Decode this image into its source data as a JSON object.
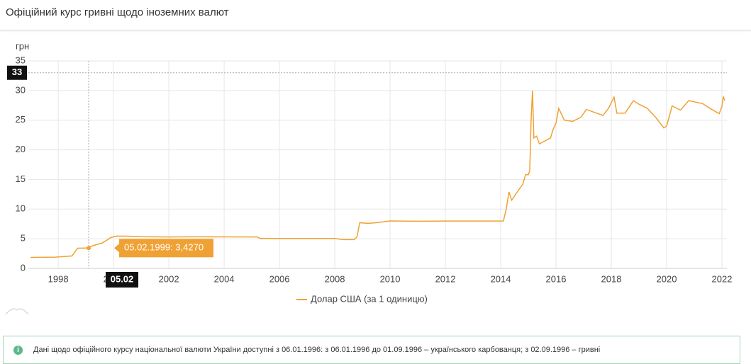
{
  "header": {
    "title": "Офіційний курс гривні щодо іноземних валют"
  },
  "chart_data": {
    "type": "line",
    "y_label": "грн",
    "x": [
      1997.0,
      1997.9,
      1998.5,
      1998.7,
      1999.0,
      1999.3,
      1999.6,
      1999.9,
      2000.1,
      2000.5,
      2001.0,
      2002.0,
      2003.0,
      2004.0,
      2005.2,
      2005.3,
      2006.0,
      2007.0,
      2008.0,
      2008.3,
      2008.7,
      2008.8,
      2008.9,
      2009.2,
      2009.5,
      2010.0,
      2011.0,
      2012.0,
      2013.0,
      2014.0,
      2014.1,
      2014.2,
      2014.3,
      2014.4,
      2014.6,
      2014.8,
      2014.9,
      2015.0,
      2015.05,
      2015.1,
      2015.15,
      2015.2,
      2015.3,
      2015.4,
      2015.6,
      2015.8,
      2015.9,
      2016.0,
      2016.1,
      2016.3,
      2016.6,
      2016.9,
      2017.1,
      2017.4,
      2017.7,
      2017.9,
      2018.1,
      2018.2,
      2018.5,
      2018.8,
      2019.0,
      2019.3,
      2019.6,
      2019.9,
      2020.0,
      2020.2,
      2020.5,
      2020.8,
      2021.0,
      2021.3,
      2021.6,
      2021.9,
      2022.0,
      2022.05,
      2022.1
    ],
    "series": [
      {
        "name": "Долар США (за 1 одиницю)",
        "color": "#f0a133",
        "values": [
          1.85,
          1.9,
          2.1,
          3.4,
          3.43,
          3.9,
          4.3,
          5.2,
          5.45,
          5.43,
          5.35,
          5.3,
          5.33,
          5.32,
          5.3,
          5.05,
          5.05,
          5.05,
          5.05,
          4.85,
          4.85,
          5.3,
          7.7,
          7.6,
          7.7,
          8.0,
          7.95,
          7.99,
          7.99,
          7.99,
          8.0,
          10.0,
          12.9,
          11.5,
          12.9,
          14.2,
          15.8,
          15.8,
          16.5,
          25,
          30,
          22,
          22.3,
          21,
          21.5,
          22,
          23.5,
          24.5,
          27,
          25,
          24.8,
          25.5,
          26.8,
          26.3,
          25.8,
          27,
          28.9,
          26.2,
          26.2,
          28.3,
          27.7,
          27,
          25.5,
          23.7,
          24,
          27.4,
          26.7,
          28.3,
          28.1,
          27.8,
          26.9,
          26.1,
          27.3,
          29,
          28.3
        ]
      }
    ],
    "xlim": [
      1996.92,
      2022.18
    ],
    "xticks": [
      1998,
      2000,
      2002,
      2004,
      2006,
      2008,
      2010,
      2012,
      2014,
      2016,
      2018,
      2020,
      2022
    ],
    "ylim": [
      0,
      35
    ],
    "yticks": [
      0,
      5,
      10,
      15,
      20,
      25,
      30,
      35
    ],
    "grid": true,
    "crosshair_y": 33,
    "tooltip": {
      "x": 1999.1,
      "y": 3.427,
      "label": "05.02.1999: 3,4270",
      "x_label": "05.02"
    }
  },
  "note": "Дані щодо офіційного курсу національної валюти України доступні з 06.01.1996: з 06.01.1996 до 01.09.1996 – українського карбованця; з 02.09.1996 – гривні"
}
